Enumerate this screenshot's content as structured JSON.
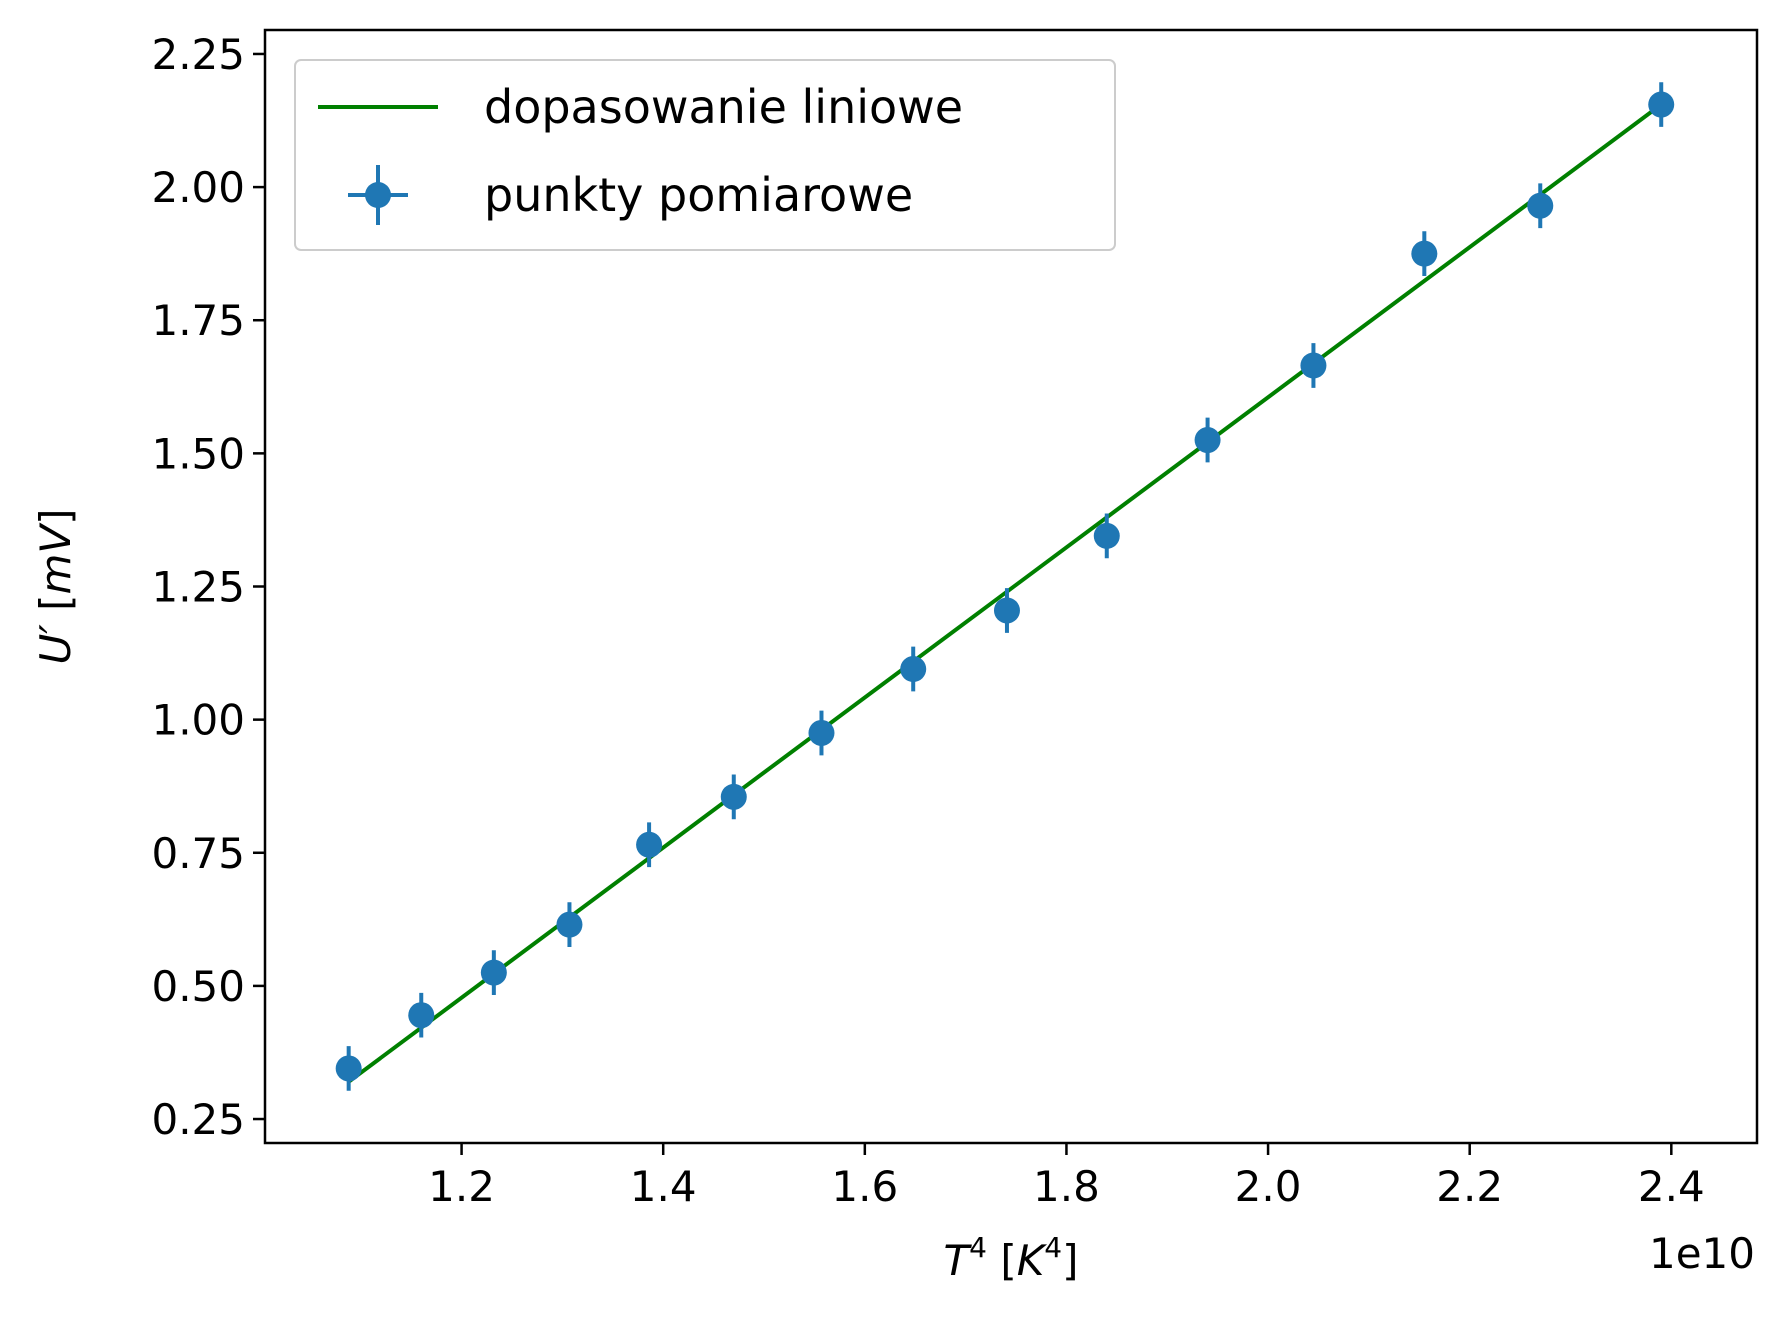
{
  "chart_data": {
    "type": "scatter",
    "xlabel": "T^4 [K^4]",
    "ylabel": "U' [mV]",
    "x_offset_label": "1e10",
    "xlim": [
      1.005,
      2.485
    ],
    "ylim": [
      0.205,
      2.295
    ],
    "x_ticks": [
      1.2,
      1.4,
      1.6,
      1.8,
      2.0,
      2.2,
      2.4
    ],
    "x_tick_labels": [
      "1.2",
      "1.4",
      "1.6",
      "1.8",
      "2.0",
      "2.2",
      "2.4"
    ],
    "y_ticks": [
      0.25,
      0.5,
      0.75,
      1.0,
      1.25,
      1.5,
      1.75,
      2.0,
      2.25
    ],
    "y_tick_labels": [
      "0.25",
      "0.50",
      "0.75",
      "1.00",
      "1.25",
      "1.50",
      "1.75",
      "2.00",
      "2.25"
    ],
    "grid": false,
    "legend_position": "top-left",
    "series": [
      {
        "name": "dopasowanie liniowe",
        "kind": "line",
        "color": "#008000",
        "x": [
          1.088,
          2.39
        ],
        "y": [
          0.32,
          2.155
        ]
      },
      {
        "name": "punkty pomiarowe",
        "kind": "errorbar",
        "color": "#1f77b4",
        "x": [
          1.088,
          1.16,
          1.232,
          1.307,
          1.386,
          1.47,
          1.557,
          1.648,
          1.741,
          1.84,
          1.94,
          2.045,
          2.155,
          2.27,
          2.39
        ],
        "y": [
          0.345,
          0.445,
          0.525,
          0.615,
          0.765,
          0.855,
          0.975,
          1.095,
          1.205,
          1.345,
          1.525,
          1.665,
          1.875,
          1.965,
          2.155
        ],
        "x_err": 0.012,
        "y_err": 0.042
      }
    ]
  }
}
